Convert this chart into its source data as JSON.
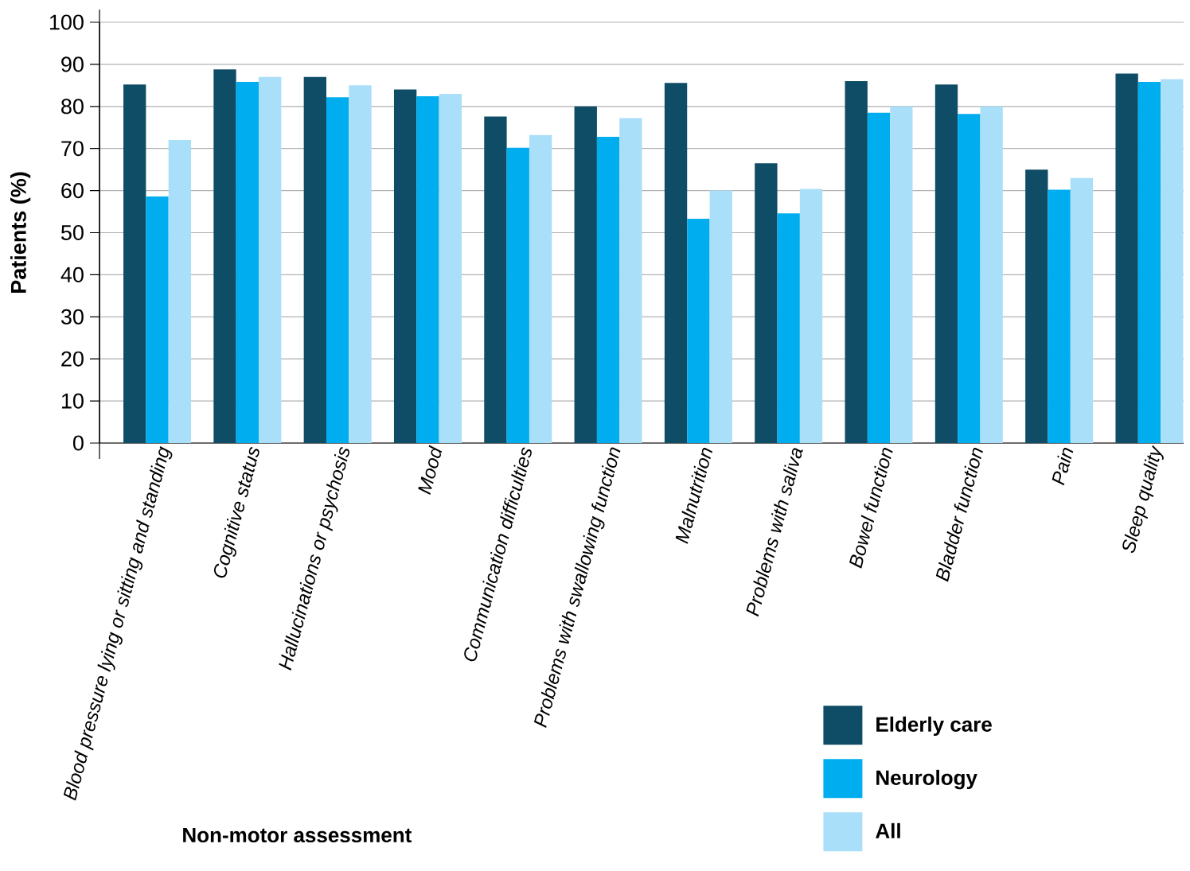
{
  "chart_data": {
    "type": "bar",
    "xlabel": "Non-motor assessment",
    "ylabel": "Patients (%)",
    "categories": [
      "Blood pressure lying or sitting and standing",
      "Cognitive status",
      "Hallucinations or psychosis",
      "Mood",
      "Communication difficulties",
      "Problems with swallowing function",
      "Malnutrition",
      "Problems with saliva",
      "Bowel function",
      "Bladder function",
      "Pain",
      "Sleep quality"
    ],
    "series": [
      {
        "name": "Elderly care",
        "color": "#0f4c65",
        "values": [
          85.2,
          88.8,
          87.0,
          84.0,
          77.6,
          80.0,
          85.6,
          66.5,
          86.0,
          85.2,
          65.0,
          87.8
        ]
      },
      {
        "name": "Neurology",
        "color": "#00adef",
        "values": [
          58.6,
          85.8,
          82.2,
          82.4,
          70.2,
          72.8,
          53.3,
          54.6,
          78.5,
          78.2,
          60.2,
          85.8
        ]
      },
      {
        "name": "All",
        "color": "#a9dff9",
        "values": [
          72.0,
          87.0,
          85.0,
          83.0,
          73.2,
          77.2,
          60.0,
          60.4,
          80.0,
          80.0,
          63.0,
          86.5
        ]
      }
    ],
    "ylim": [
      0,
      100
    ],
    "yticks": [
      0,
      10,
      20,
      30,
      40,
      50,
      60,
      70,
      80,
      90,
      100
    ],
    "grid": "y",
    "legend": "bottom right"
  }
}
